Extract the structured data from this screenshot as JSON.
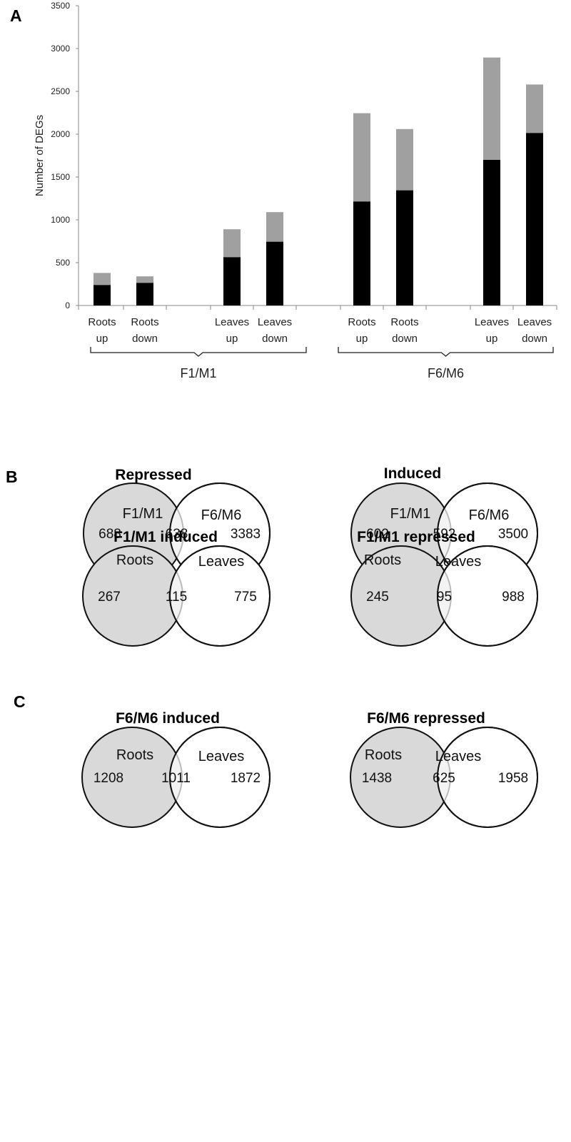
{
  "panel_labels": {
    "a": "A",
    "b": "B",
    "c": "C"
  },
  "chart_data": {
    "type": "bar",
    "stacked": true,
    "ylabel": "Number of DEGs",
    "ylim": [
      0,
      3500
    ],
    "yticks": [
      0,
      500,
      1000,
      1500,
      2000,
      2500,
      3000,
      3500
    ],
    "categories": [
      [
        "Roots",
        "up"
      ],
      [
        "Roots",
        "down"
      ],
      [
        "Leaves",
        "up"
      ],
      [
        "Leaves",
        "down"
      ],
      [
        "Roots",
        "up"
      ],
      [
        "Roots",
        "down"
      ],
      [
        "Leaves",
        "up"
      ],
      [
        "Leaves",
        "down"
      ]
    ],
    "groups": [
      {
        "label": "F1/M1",
        "members": [
          0,
          1,
          2,
          3
        ]
      },
      {
        "label": "F6/M6",
        "members": [
          4,
          5,
          6,
          7
        ]
      }
    ],
    "series": [
      {
        "color": "#000000",
        "values": [
          240,
          265,
          565,
          745,
          1215,
          1345,
          1700,
          2015
        ]
      },
      {
        "color": "#a0a0a0",
        "values": [
          140,
          75,
          325,
          345,
          1030,
          715,
          1195,
          565
        ]
      }
    ],
    "grid": false,
    "legend": "none"
  },
  "venns": [
    {
      "title": "Repressed",
      "left_label": "F1/M1",
      "right_label": "F6/M6",
      "left_only": "688",
      "overlap": "638",
      "right_only": "3383"
    },
    {
      "title": "Induced",
      "left_label": "F1/M1",
      "right_label": "F6/M6",
      "left_only": "602",
      "overlap": "592",
      "right_only": "3500"
    },
    {
      "title": "F1/M1 induced",
      "left_label": "Roots",
      "right_label": "Leaves",
      "left_only": "267",
      "overlap": "115",
      "right_only": "775"
    },
    {
      "title": "F1/M1 repressed",
      "left_label": "Roots",
      "right_label": "Leaves",
      "left_only": "245",
      "overlap": "95",
      "right_only": "988"
    },
    {
      "title": "F6/M6 induced",
      "left_label": "Roots",
      "right_label": "Leaves",
      "left_only": "1208",
      "overlap": "1011",
      "right_only": "1872"
    },
    {
      "title": "F6/M6 repressed",
      "left_label": "Roots",
      "right_label": "Leaves",
      "left_only": "1438",
      "overlap": "625",
      "right_only": "1958"
    }
  ],
  "colors": {
    "left_set_fill": "#d9d9d9",
    "overlap_fill": "#f3f3f3",
    "right_set_fill": "#ffffff",
    "outline": "#111111"
  }
}
